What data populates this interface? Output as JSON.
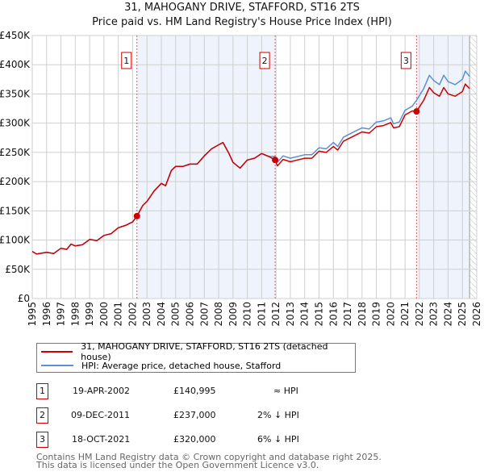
{
  "title": "31, MAHOGANY DRIVE, STAFFORD, ST16 2TS",
  "subtitle": "Price paid vs. HM Land Registry's House Price Index (HPI)",
  "colors": {
    "price": "#cc0000",
    "hpi": "#5b8fd6",
    "shade": "#eef3fc"
  },
  "chart_data": {
    "type": "line",
    "title": "31, MAHOGANY DRIVE, STAFFORD, ST16 2TS",
    "subtitle": "Price paid vs. HM Land Registry's House Price Index (HPI)",
    "xlim": [
      1995,
      2026
    ],
    "ylim": [
      0,
      450000
    ],
    "y_ticks": [
      0,
      50000,
      100000,
      150000,
      200000,
      250000,
      300000,
      350000,
      400000,
      450000
    ],
    "y_tick_labels": [
      "£0",
      "£50K",
      "£100K",
      "£150K",
      "£200K",
      "£250K",
      "£300K",
      "£350K",
      "£400K",
      "£450K"
    ],
    "x_ticks": [
      "1995",
      "1996",
      "1997",
      "1998",
      "1999",
      "2000",
      "2001",
      "2002",
      "2003",
      "2004",
      "2005",
      "2006",
      "2007",
      "2008",
      "2009",
      "2010",
      "2011",
      "2012",
      "2013",
      "2014",
      "2015",
      "2016",
      "2017",
      "2018",
      "2019",
      "2020",
      "2021",
      "2022",
      "2023",
      "2024",
      "2025",
      "2026"
    ],
    "grid": true,
    "forecast_start": 2025.5,
    "x": [
      1995.0,
      1995.3,
      1996,
      1996.5,
      1997,
      1997.4,
      1997.7,
      1998,
      1998.5,
      1999,
      1999.5,
      2000,
      2000.5,
      2001,
      2001.5,
      2002,
      2002.3,
      2002.7,
      2003,
      2003.5,
      2004,
      2004.3,
      2004.7,
      2005,
      2005.5,
      2006,
      2006.5,
      2007,
      2007.5,
      2008,
      2008.3,
      2008.7,
      2009,
      2009.5,
      2010,
      2010.5,
      2011,
      2011.5,
      2011.94,
      2012.1,
      2012.5,
      2013,
      2013.5,
      2014,
      2014.5,
      2015,
      2015.5,
      2016,
      2016.3,
      2016.7,
      2017.5,
      2018,
      2018.5,
      2019,
      2019.5,
      2020,
      2020.2,
      2020.6,
      2021,
      2021.5,
      2021.8,
      2022.3,
      2022.7,
      2023,
      2023.4,
      2023.7,
      2024,
      2024.5,
      2025,
      2025.2,
      2025.5
    ],
    "series": [
      {
        "name": "31, MAHOGANY DRIVE, STAFFORD, ST16 2TS (detached house)",
        "color": "#cc0000",
        "values": [
          80600,
          76000,
          79000,
          77000,
          86000,
          84000,
          93000,
          90000,
          92000,
          101000,
          99000,
          108000,
          111000,
          121000,
          125000,
          131000,
          141000,
          159000,
          166000,
          184000,
          197000,
          193000,
          219000,
          226000,
          226000,
          230000,
          230000,
          244000,
          256000,
          263000,
          267000,
          249000,
          233000,
          223000,
          237000,
          240000,
          248000,
          243000,
          237000,
          227000,
          238000,
          234000,
          237000,
          240000,
          240000,
          252000,
          250000,
          260000,
          254000,
          269000,
          279000,
          285000,
          283000,
          294000,
          296000,
          301000,
          292000,
          294000,
          314000,
          321000,
          320000,
          339000,
          361000,
          352000,
          346000,
          361000,
          350000,
          346000,
          354000,
          367000,
          359000
        ]
      },
      {
        "name": "HPI: Average price, detached house, Stafford",
        "color": "#5b8fd6",
        "values": [
          80600,
          76000,
          79000,
          77000,
          86000,
          84000,
          93000,
          90000,
          92000,
          101000,
          99000,
          108000,
          111000,
          121000,
          125000,
          131000,
          141000,
          159000,
          166000,
          184000,
          197000,
          193000,
          219000,
          226000,
          226000,
          230000,
          230000,
          244000,
          256000,
          263000,
          267000,
          249000,
          233000,
          223000,
          237000,
          240000,
          248000,
          243000,
          243000,
          233000,
          244000,
          240000,
          243000,
          246000,
          246000,
          258000,
          256000,
          267000,
          260000,
          276000,
          286000,
          292000,
          290000,
          302000,
          304000,
          309000,
          299000,
          302000,
          322000,
          329000,
          339000,
          359000,
          382000,
          373000,
          366000,
          382000,
          371000,
          366000,
          375000,
          389000,
          380000
        ]
      }
    ],
    "sales": [
      {
        "id": "1",
        "x": 2002.3,
        "value": 140995
      },
      {
        "id": "2",
        "x": 2011.94,
        "value": 237000
      },
      {
        "id": "3",
        "x": 2021.8,
        "value": 320000
      }
    ],
    "legend": "below"
  },
  "legend": {
    "price_label": "31, MAHOGANY DRIVE, STAFFORD, ST16 2TS (detached house)",
    "hpi_label": "HPI: Average price, detached house, Stafford"
  },
  "transactions": [
    {
      "id": "1",
      "date": "19-APR-2002",
      "price": "£140,995",
      "hpi": "≈ HPI"
    },
    {
      "id": "2",
      "date": "09-DEC-2011",
      "price": "£237,000",
      "hpi": "2% ↓ HPI"
    },
    {
      "id": "3",
      "date": "18-OCT-2021",
      "price": "£320,000",
      "hpi": "6% ↓ HPI"
    }
  ],
  "footer": {
    "line1": "Contains HM Land Registry data © Crown copyright and database right 2025.",
    "line2": "This data is licensed under the Open Government Licence v3.0."
  }
}
